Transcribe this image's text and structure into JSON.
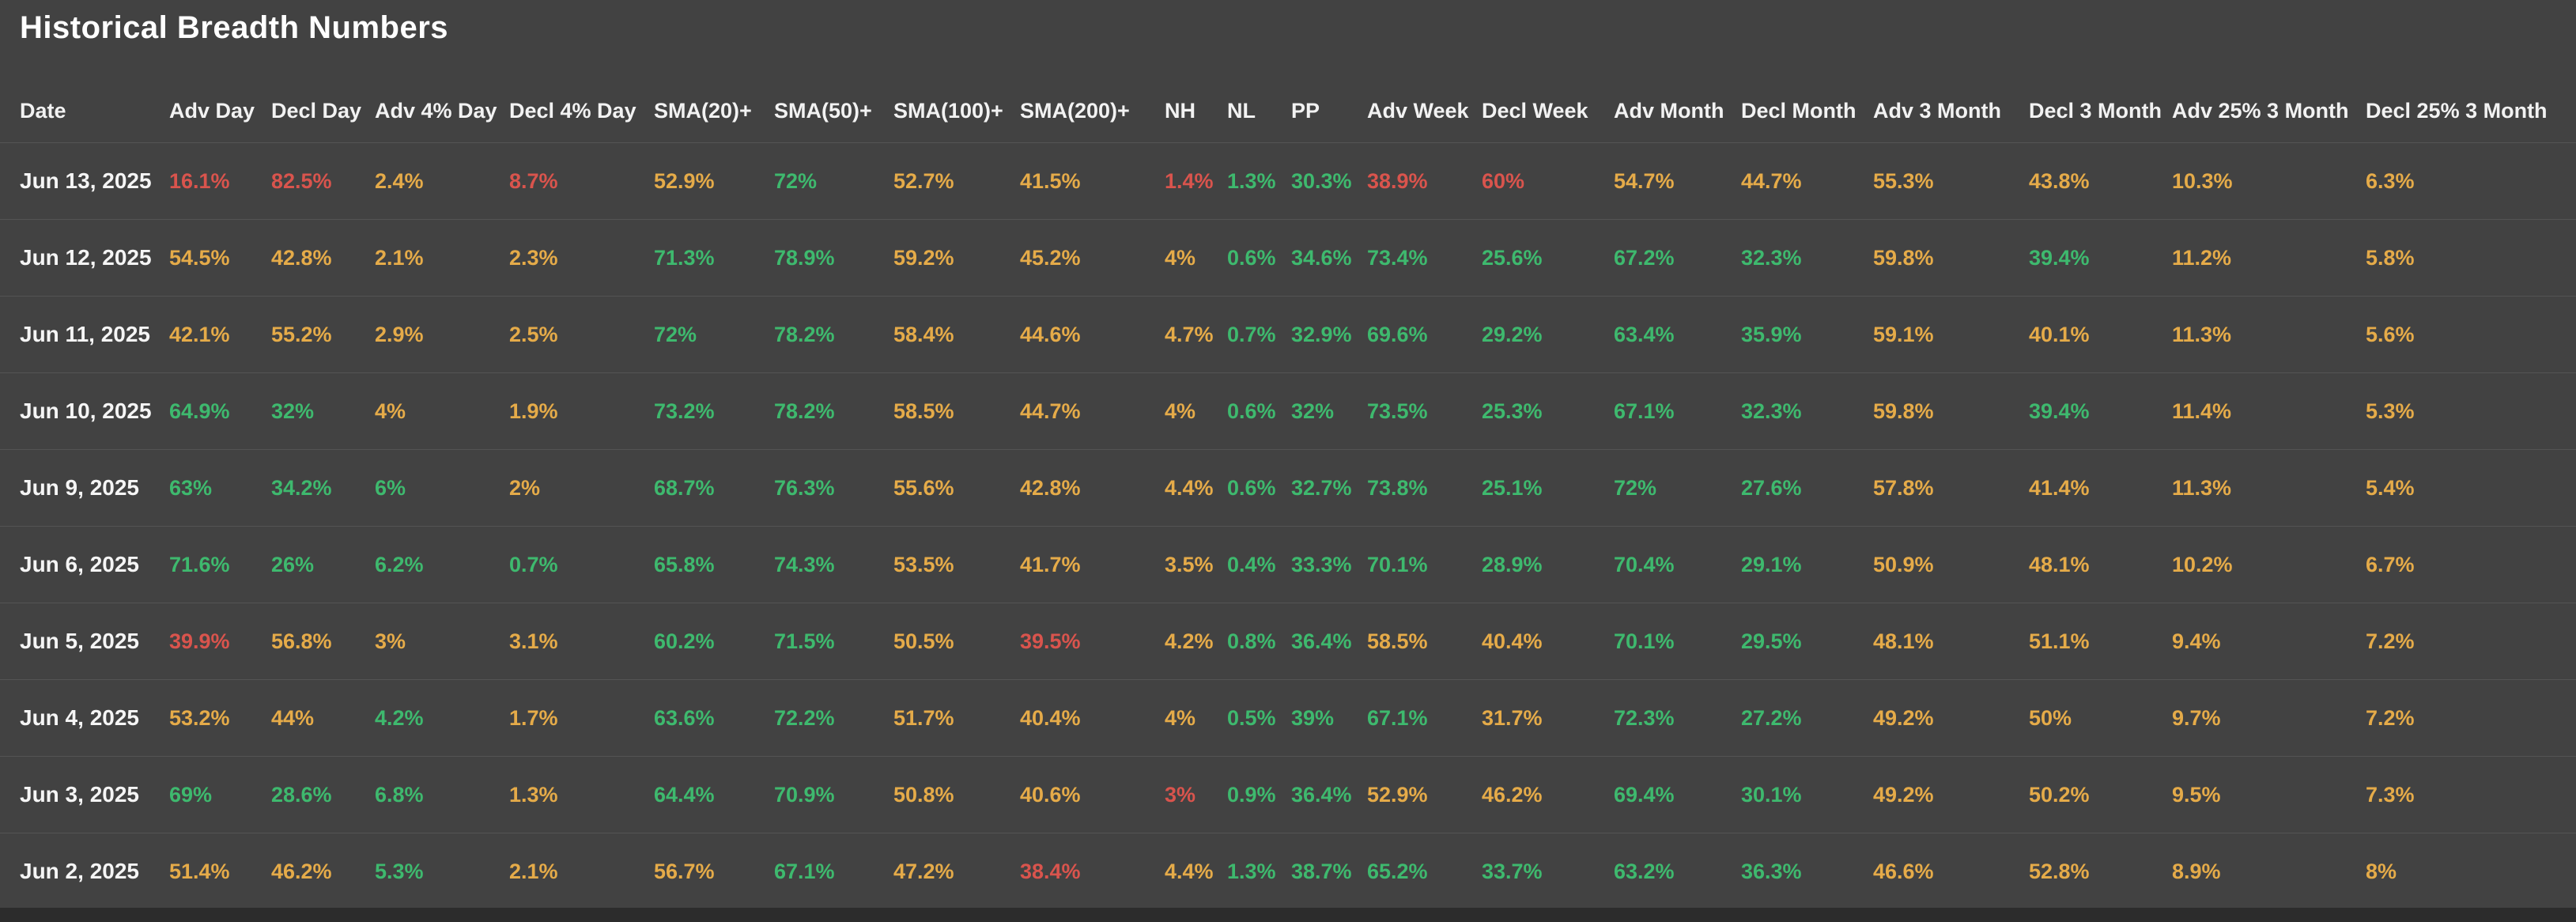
{
  "title": "Historical Breadth Numbers",
  "colors": {
    "background": "#424242",
    "separator": "#545454",
    "title_text": "#ffffff",
    "header_text": "#f2f2f2",
    "date_text": "#f5f5f5",
    "green": "#3eb96e",
    "yellow": "#e5ab49",
    "red": "#d9544d",
    "footer_bar": "#2c2c2c"
  },
  "table": {
    "columns": [
      "Date",
      "Adv Day",
      "Decl Day",
      "Adv 4% Day",
      "Decl 4% Day",
      "SMA(20)+",
      "SMA(50)+",
      "SMA(100)+",
      "SMA(200)+",
      "NH",
      "NL",
      "PP",
      "Adv Week",
      "Decl Week",
      "Adv Month",
      "Decl Month",
      "Adv 3 Month",
      "Decl 3 Month",
      "Adv 25% 3 Month",
      "Decl 25% 3 Month"
    ],
    "rows": [
      {
        "date": "Jun 13, 2025",
        "values": [
          "16.1%",
          "82.5%",
          "2.4%",
          "8.7%",
          "52.9%",
          "72%",
          "52.7%",
          "41.5%",
          "1.4%",
          "1.3%",
          "30.3%",
          "38.9%",
          "60%",
          "54.7%",
          "44.7%",
          "55.3%",
          "43.8%",
          "10.3%",
          "6.3%"
        ],
        "colors": [
          "r",
          "r",
          "y",
          "r",
          "y",
          "g",
          "y",
          "y",
          "r",
          "g",
          "g",
          "r",
          "r",
          "y",
          "y",
          "y",
          "y",
          "y",
          "y"
        ]
      },
      {
        "date": "Jun 12, 2025",
        "values": [
          "54.5%",
          "42.8%",
          "2.1%",
          "2.3%",
          "71.3%",
          "78.9%",
          "59.2%",
          "45.2%",
          "4%",
          "0.6%",
          "34.6%",
          "73.4%",
          "25.6%",
          "67.2%",
          "32.3%",
          "59.8%",
          "39.4%",
          "11.2%",
          "5.8%"
        ],
        "colors": [
          "y",
          "y",
          "y",
          "y",
          "g",
          "g",
          "y",
          "y",
          "y",
          "g",
          "g",
          "g",
          "g",
          "g",
          "g",
          "y",
          "g",
          "y",
          "y"
        ]
      },
      {
        "date": "Jun 11, 2025",
        "values": [
          "42.1%",
          "55.2%",
          "2.9%",
          "2.5%",
          "72%",
          "78.2%",
          "58.4%",
          "44.6%",
          "4.7%",
          "0.7%",
          "32.9%",
          "69.6%",
          "29.2%",
          "63.4%",
          "35.9%",
          "59.1%",
          "40.1%",
          "11.3%",
          "5.6%"
        ],
        "colors": [
          "y",
          "y",
          "y",
          "y",
          "g",
          "g",
          "y",
          "y",
          "y",
          "g",
          "g",
          "g",
          "g",
          "g",
          "g",
          "y",
          "y",
          "y",
          "y"
        ]
      },
      {
        "date": "Jun 10, 2025",
        "values": [
          "64.9%",
          "32%",
          "4%",
          "1.9%",
          "73.2%",
          "78.2%",
          "58.5%",
          "44.7%",
          "4%",
          "0.6%",
          "32%",
          "73.5%",
          "25.3%",
          "67.1%",
          "32.3%",
          "59.8%",
          "39.4%",
          "11.4%",
          "5.3%"
        ],
        "colors": [
          "g",
          "g",
          "y",
          "y",
          "g",
          "g",
          "y",
          "y",
          "y",
          "g",
          "g",
          "g",
          "g",
          "g",
          "g",
          "y",
          "g",
          "y",
          "y"
        ]
      },
      {
        "date": "Jun 9, 2025",
        "values": [
          "63%",
          "34.2%",
          "6%",
          "2%",
          "68.7%",
          "76.3%",
          "55.6%",
          "42.8%",
          "4.4%",
          "0.6%",
          "32.7%",
          "73.8%",
          "25.1%",
          "72%",
          "27.6%",
          "57.8%",
          "41.4%",
          "11.3%",
          "5.4%"
        ],
        "colors": [
          "g",
          "g",
          "g",
          "y",
          "g",
          "g",
          "y",
          "y",
          "y",
          "g",
          "g",
          "g",
          "g",
          "g",
          "g",
          "y",
          "y",
          "y",
          "y"
        ]
      },
      {
        "date": "Jun 6, 2025",
        "values": [
          "71.6%",
          "26%",
          "6.2%",
          "0.7%",
          "65.8%",
          "74.3%",
          "53.5%",
          "41.7%",
          "3.5%",
          "0.4%",
          "33.3%",
          "70.1%",
          "28.9%",
          "70.4%",
          "29.1%",
          "50.9%",
          "48.1%",
          "10.2%",
          "6.7%"
        ],
        "colors": [
          "g",
          "g",
          "g",
          "g",
          "g",
          "g",
          "y",
          "y",
          "y",
          "g",
          "g",
          "g",
          "g",
          "g",
          "g",
          "y",
          "y",
          "y",
          "y"
        ]
      },
      {
        "date": "Jun 5, 2025",
        "values": [
          "39.9%",
          "56.8%",
          "3%",
          "3.1%",
          "60.2%",
          "71.5%",
          "50.5%",
          "39.5%",
          "4.2%",
          "0.8%",
          "36.4%",
          "58.5%",
          "40.4%",
          "70.1%",
          "29.5%",
          "48.1%",
          "51.1%",
          "9.4%",
          "7.2%"
        ],
        "colors": [
          "r",
          "y",
          "y",
          "y",
          "g",
          "g",
          "y",
          "r",
          "y",
          "g",
          "g",
          "y",
          "y",
          "g",
          "g",
          "y",
          "y",
          "y",
          "y"
        ]
      },
      {
        "date": "Jun 4, 2025",
        "values": [
          "53.2%",
          "44%",
          "4.2%",
          "1.7%",
          "63.6%",
          "72.2%",
          "51.7%",
          "40.4%",
          "4%",
          "0.5%",
          "39%",
          "67.1%",
          "31.7%",
          "72.3%",
          "27.2%",
          "49.2%",
          "50%",
          "9.7%",
          "7.2%"
        ],
        "colors": [
          "y",
          "y",
          "g",
          "y",
          "g",
          "g",
          "y",
          "y",
          "y",
          "g",
          "g",
          "g",
          "y",
          "g",
          "g",
          "y",
          "y",
          "y",
          "y"
        ]
      },
      {
        "date": "Jun 3, 2025",
        "values": [
          "69%",
          "28.6%",
          "6.8%",
          "1.3%",
          "64.4%",
          "70.9%",
          "50.8%",
          "40.6%",
          "3%",
          "0.9%",
          "36.4%",
          "52.9%",
          "46.2%",
          "69.4%",
          "30.1%",
          "49.2%",
          "50.2%",
          "9.5%",
          "7.3%"
        ],
        "colors": [
          "g",
          "g",
          "g",
          "y",
          "g",
          "g",
          "y",
          "y",
          "r",
          "g",
          "g",
          "y",
          "y",
          "g",
          "g",
          "y",
          "y",
          "y",
          "y"
        ]
      },
      {
        "date": "Jun 2, 2025",
        "values": [
          "51.4%",
          "46.2%",
          "5.3%",
          "2.1%",
          "56.7%",
          "67.1%",
          "47.2%",
          "38.4%",
          "4.4%",
          "1.3%",
          "38.7%",
          "65.2%",
          "33.7%",
          "63.2%",
          "36.3%",
          "46.6%",
          "52.8%",
          "8.9%",
          "8%"
        ],
        "colors": [
          "y",
          "y",
          "g",
          "y",
          "y",
          "g",
          "y",
          "r",
          "y",
          "g",
          "g",
          "g",
          "g",
          "g",
          "g",
          "y",
          "y",
          "y",
          "y"
        ]
      }
    ]
  }
}
